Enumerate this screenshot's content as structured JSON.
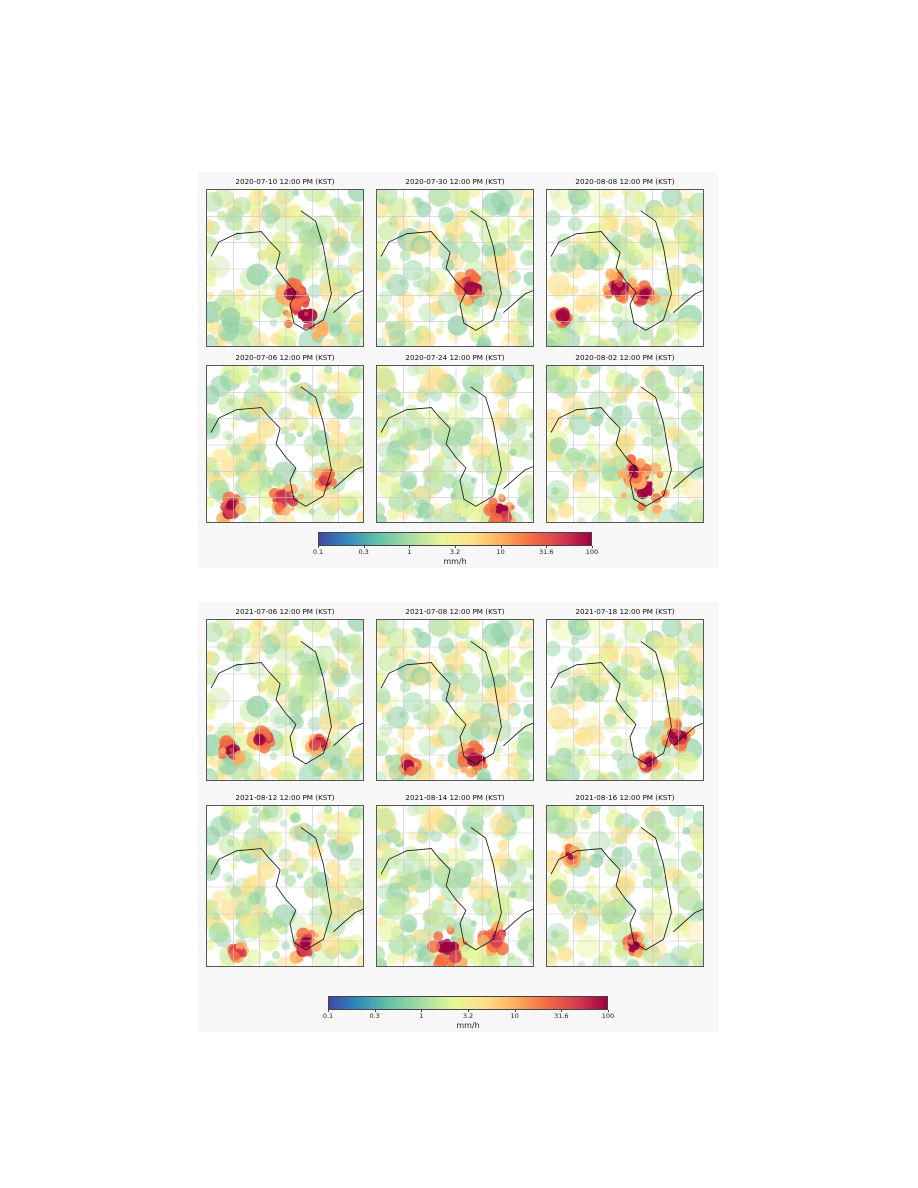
{
  "figure_2020": {
    "panels": [
      {
        "title": "2020-07-10 12:00 PM (KST)",
        "rain": "heavy-west-central"
      },
      {
        "title": "2020-07-30 12:00 PM (KST)",
        "rain": "heavy-center"
      },
      {
        "title": "2020-08-08 12:00 PM (KST)",
        "rain": "heavy-southwest"
      },
      {
        "title": "2020-07-06 12:00 PM (KST)",
        "rain": "band-south"
      },
      {
        "title": "2020-07-24 12:00 PM (KST)",
        "rain": "typhoon-swirl"
      },
      {
        "title": "2020-08-02 12:00 PM (KST)",
        "rain": "heavy-west-central"
      }
    ],
    "colorbar": {
      "ticks": [
        "0.1",
        "0.3",
        "1",
        "3.2",
        "10",
        "31.6",
        "100"
      ],
      "unit": "mm/h",
      "colormap": [
        "#3c4aa1",
        "#3288bd",
        "#66c2a5",
        "#abdda4",
        "#e6f598",
        "#fee08b",
        "#fdae61",
        "#f46d43",
        "#d53e4f",
        "#9e0142"
      ]
    }
  },
  "figure_2021": {
    "panels": [
      {
        "title": "2021-07-06 12:00 PM (KST)",
        "rain": "band-southwest"
      },
      {
        "title": "2021-07-08 12:00 PM (KST)",
        "rain": "heavy-south"
      },
      {
        "title": "2021-07-18 12:00 PM (KST)",
        "rain": "heavy-southeast"
      },
      {
        "title": "2021-08-12 12:00 PM (KST)",
        "rain": "heavy-south"
      },
      {
        "title": "2021-08-14 12:00 PM (KST)",
        "rain": "heavy-south-large"
      },
      {
        "title": "2021-08-16 12:00 PM (KST)",
        "rain": "moderate-south"
      }
    ],
    "colorbar": {
      "ticks": [
        "0.1",
        "0.3",
        "1",
        "3.2",
        "10",
        "31.6",
        "100"
      ],
      "unit": "mm/h"
    }
  }
}
